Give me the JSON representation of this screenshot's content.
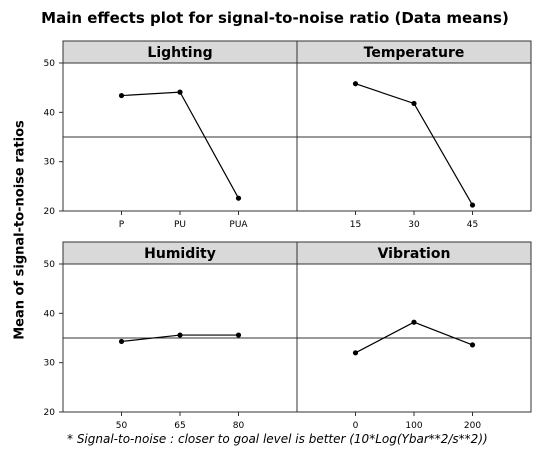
{
  "title": "Main effects plot for signal-to-noise ratio (Data means)",
  "ylabel": "Mean of signal-to-noise ratios",
  "footnote": "* Signal-to-noise : closer to goal level is better (10*Log(Ybar**2/s**2))",
  "chart_data": [
    {
      "type": "line",
      "title": "Lighting",
      "categories": [
        "P",
        "PU",
        "PUA"
      ],
      "values": [
        43.4,
        44.1,
        22.6
      ],
      "ylim": [
        20,
        50
      ],
      "yticks": [
        20,
        30,
        40,
        50
      ],
      "reference_line": 35.0
    },
    {
      "type": "line",
      "title": "Temperature",
      "categories": [
        "15",
        "30",
        "45"
      ],
      "values": [
        45.8,
        41.8,
        21.2
      ],
      "ylim": [
        20,
        50
      ],
      "yticks": [
        20,
        30,
        40,
        50
      ],
      "reference_line": 35.0
    },
    {
      "type": "line",
      "title": "Humidity",
      "categories": [
        "50",
        "65",
        "80"
      ],
      "values": [
        34.3,
        35.6,
        35.6
      ],
      "ylim": [
        20,
        50
      ],
      "yticks": [
        20,
        30,
        40,
        50
      ],
      "reference_line": 35.0
    },
    {
      "type": "line",
      "title": "Vibration",
      "categories": [
        "0",
        "100",
        "200"
      ],
      "values": [
        32.0,
        38.2,
        33.6
      ],
      "ylim": [
        20,
        50
      ],
      "yticks": [
        20,
        30,
        40,
        50
      ],
      "reference_line": 35.0
    }
  ]
}
